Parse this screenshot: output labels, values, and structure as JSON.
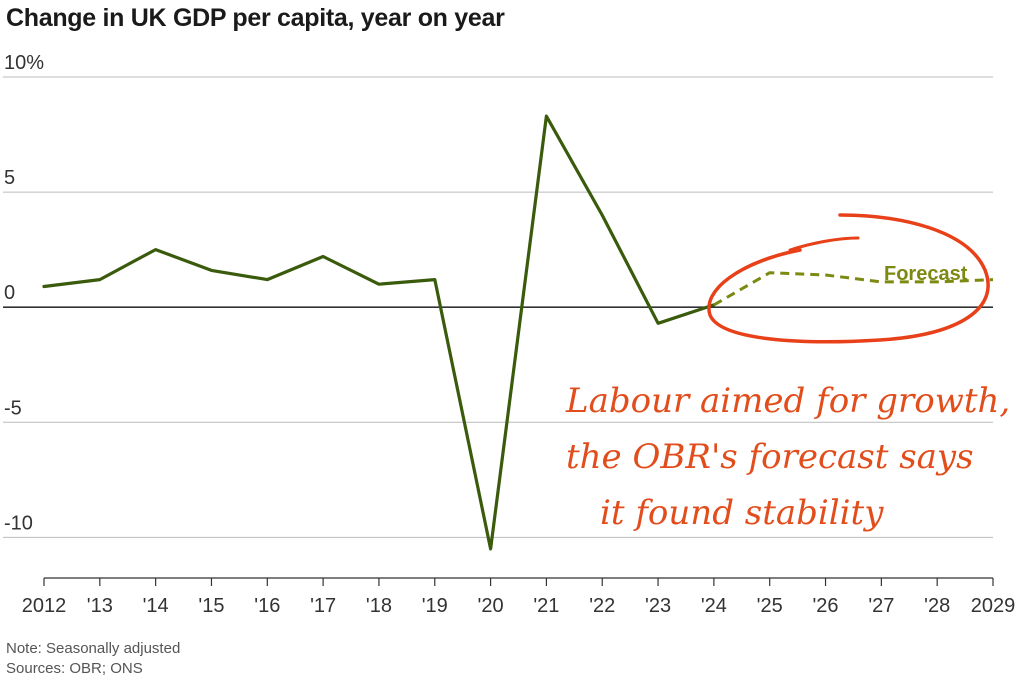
{
  "chart_data": {
    "type": "line",
    "title": "Change in UK GDP per capita, year on year",
    "x": [
      2012,
      2013,
      2014,
      2015,
      2016,
      2017,
      2018,
      2019,
      2020,
      2021,
      2022,
      2023,
      2024,
      2025,
      2026,
      2027,
      2028,
      2029
    ],
    "xtick_labels": [
      "2012",
      "'13",
      "'14",
      "'15",
      "'16",
      "'17",
      "'18",
      "'19",
      "'20",
      "'21",
      "'22",
      "'23",
      "'24",
      "'25",
      "'26",
      "'27",
      "'28",
      "2029"
    ],
    "ytick_labels": [
      "10%",
      "5",
      "0",
      "-5",
      "-10"
    ],
    "yticks": [
      10,
      5,
      0,
      -5,
      -10
    ],
    "ylim": [
      -11.2,
      10
    ],
    "xlim": [
      2012,
      2029
    ],
    "grid": true,
    "series": [
      {
        "style": "solid",
        "color": "#3a5a0c",
        "points": [
          [
            2012,
            0.9
          ],
          [
            2013,
            1.2
          ],
          [
            2014,
            2.5
          ],
          [
            2015,
            1.6
          ],
          [
            2016,
            1.2
          ],
          [
            2017,
            2.2
          ],
          [
            2018,
            1.0
          ],
          [
            2019,
            1.2
          ],
          [
            2020,
            -10.5
          ],
          [
            2021,
            8.3
          ],
          [
            2022,
            4.0
          ],
          [
            2023,
            -0.7
          ],
          [
            2024,
            0.1
          ]
        ]
      },
      {
        "name": "Forecast",
        "style": "dashed",
        "color": "#7d8a12",
        "points": [
          [
            2024,
            0.1
          ],
          [
            2025,
            1.5
          ],
          [
            2026,
            1.4
          ],
          [
            2027,
            1.1
          ],
          [
            2028,
            1.1
          ],
          [
            2029,
            1.2
          ]
        ]
      }
    ],
    "annotation": {
      "lines": [
        "Labour aimed for growth,",
        "the OBR's forecast says",
        "it found stability"
      ],
      "color": "#e24d1c"
    }
  },
  "notes": {
    "note": "Note: Seasonally adjusted",
    "sources": "Sources: OBR; ONS"
  }
}
